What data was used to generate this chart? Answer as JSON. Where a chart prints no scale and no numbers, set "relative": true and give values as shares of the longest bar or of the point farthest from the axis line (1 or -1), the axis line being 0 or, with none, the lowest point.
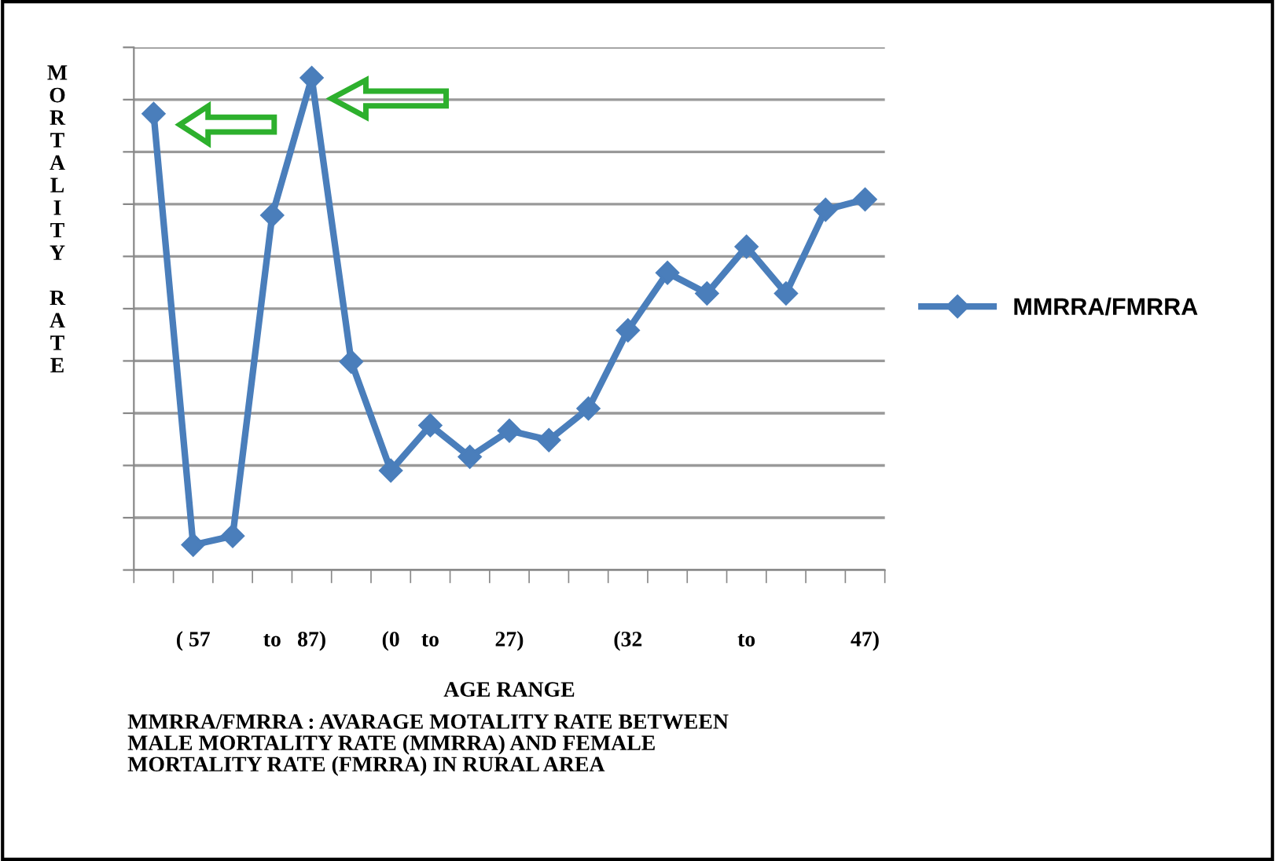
{
  "chart_data": {
    "type": "line",
    "relative": true,
    "xlabel": "AGE RANGE",
    "ylabel": "MORTALITY RATE",
    "categories": [
      null,
      "( 57",
      null,
      "to",
      "87)",
      null,
      "(0",
      "to",
      null,
      "27)",
      null,
      null,
      "(32",
      null,
      null,
      "to",
      null,
      null,
      "47)"
    ],
    "series": [
      {
        "name": "MMRRA/FMRRA",
        "color": "#4a7ebb",
        "values": [
          0.927,
          0.051,
          0.069,
          0.721,
          1,
          0.423,
          0.202,
          0.294,
          0.23,
          0.283,
          0.264,
          0.328,
          0.487,
          0.604,
          0.562,
          0.657,
          0.562,
          0.732,
          0.753
        ]
      }
    ],
    "marker": "diamond",
    "line_style": "solid",
    "grid": "y",
    "legend": "right",
    "annotations": [
      "MMRRA/FMRRA : AVARAGE MOTALITY RATE BETWEEN\nMALE MORTALITY RATE (MMRRA) AND FEMALE\nMORTALITY RATE (FMRRA) IN RURAL AREA"
    ]
  }
}
